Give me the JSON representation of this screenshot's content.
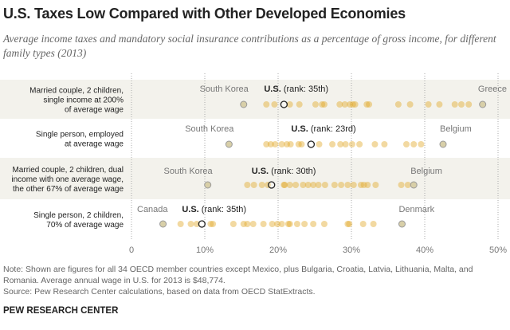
{
  "title": "U.S. Taxes Low Compared with Other Developed Economies",
  "subtitle": "Average income taxes and mandatory social insurance contributions as a percentage of gross income, for different family types (2013)",
  "note": "Note: Shown are figures for all 34 OECD member countries except Mexico, plus Bulgaria, Croatia, Latvia, Lithuania, Malta, and Romania. Average annual wage in U.S. for 2013 is $48,774.",
  "source": "Source: Pew Research Center calculations, based on data from OECD StatExtracts.",
  "brand": "PEW RESEARCH CENTER",
  "chart_data": {
    "type": "scatter",
    "xlim": [
      0,
      50
    ],
    "x_ticks": [
      "0",
      "10%",
      "20%",
      "30%",
      "40%",
      "50%"
    ],
    "grid": true,
    "colors": {
      "dot": "#e2aa2e",
      "endpoint": "#d8cfa8",
      "us_stroke": "#222222",
      "band": "#f3f2ec"
    },
    "rows": [
      {
        "label": [
          "Married couple, 2 children,",
          "single income at 200%",
          "of average wage"
        ],
        "min": {
          "name": "South Korea",
          "value": 15.3
        },
        "max": {
          "name": "Greece",
          "value": 47.9
        },
        "us": {
          "name": "U.S.",
          "rank": "(rank: 35th)",
          "value": 20.8
        },
        "others": [
          18.4,
          19.5,
          21.6,
          22.9,
          25.1,
          26.0,
          26.3,
          28.4,
          29.1,
          29.8,
          30.2,
          30.5,
          32.1,
          32.4,
          36.4,
          38.0,
          40.5,
          42.0,
          44.1,
          45.0,
          46.0
        ]
      },
      {
        "label": [
          "Single person, employed",
          "at average wage"
        ],
        "min": {
          "name": "South Korea",
          "value": 13.3
        },
        "max": {
          "name": "Belgium",
          "value": 42.5
        },
        "us": {
          "name": "U.S.",
          "rank": "(rank: 23rd)",
          "value": 24.5
        },
        "others": [
          18.4,
          19.0,
          19.6,
          20.5,
          21.2,
          21.7,
          22.8,
          23.2,
          25.6,
          27.4,
          28.5,
          29.2,
          30.1,
          31.1,
          33.2,
          34.5,
          37.5,
          38.5,
          39.5
        ]
      },
      {
        "label": [
          "Married couple, 2 children, dual",
          "income with one average wage,",
          "the other 67% of average wage"
        ],
        "min": {
          "name": "South Korea",
          "value": 10.4
        },
        "max": {
          "name": "Belgium",
          "value": 38.5
        },
        "us": {
          "name": "U.S.",
          "rank": "(rank: 30th)",
          "value": 19.1
        },
        "others": [
          15.8,
          16.7,
          17.8,
          18.6,
          20.8,
          20.9,
          21.6,
          22.4,
          23.4,
          24.1,
          24.8,
          25.5,
          26.4,
          27.7,
          28.6,
          29.5,
          30.3,
          31.3,
          31.7,
          32.2,
          33.3,
          36.8,
          37.7
        ]
      },
      {
        "label": [
          "Single person, 2 children,",
          "70% of average wage"
        ],
        "min": {
          "name": "Canada",
          "value": 4.3
        },
        "max": {
          "name": "Denmark",
          "value": 36.9
        },
        "us": {
          "name": "U.S.",
          "rank": "(rank: 35th)",
          "value": 9.6
        },
        "others": [
          6.7,
          8.1,
          8.9,
          10.8,
          11.1,
          13.9,
          15.3,
          15.8,
          16.6,
          18.0,
          19.2,
          19.9,
          20.5,
          21.4,
          21.6,
          22.6,
          23.6,
          24.8,
          26.3,
          29.5,
          29.7,
          31.6,
          33.0
        ]
      }
    ]
  }
}
